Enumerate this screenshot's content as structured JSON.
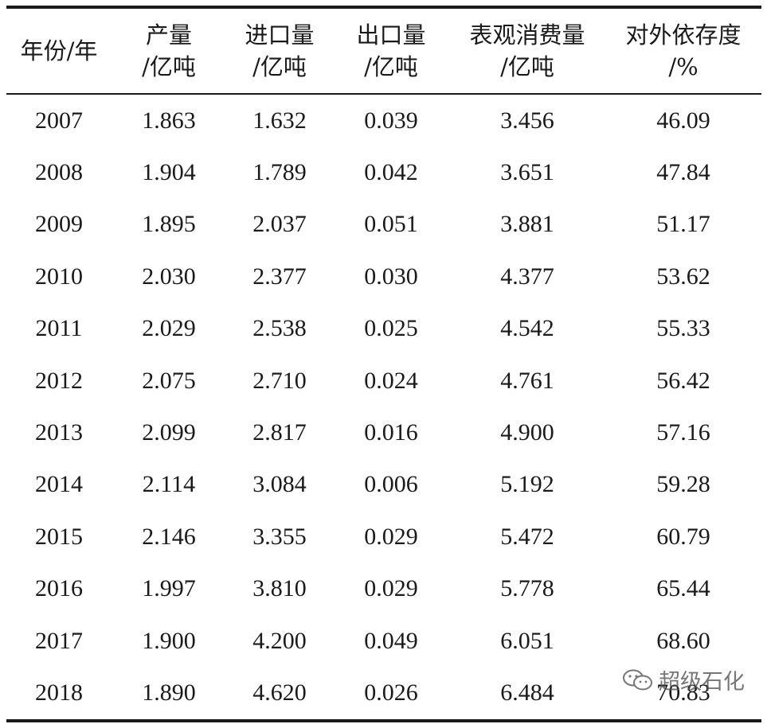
{
  "table": {
    "headers": [
      {
        "line1": "年份/年",
        "line2": ""
      },
      {
        "line1": "产量",
        "line2": "/亿吨"
      },
      {
        "line1": "进口量",
        "line2": "/亿吨"
      },
      {
        "line1": "出口量",
        "line2": "/亿吨"
      },
      {
        "line1": "表观消费量",
        "line2": "/亿吨"
      },
      {
        "line1": "对外依存度",
        "line2": "/%"
      }
    ],
    "rows": [
      [
        "2007",
        "1.863",
        "1.632",
        "0.039",
        "3.456",
        "46.09"
      ],
      [
        "2008",
        "1.904",
        "1.789",
        "0.042",
        "3.651",
        "47.84"
      ],
      [
        "2009",
        "1.895",
        "2.037",
        "0.051",
        "3.881",
        "51.17"
      ],
      [
        "2010",
        "2.030",
        "2.377",
        "0.030",
        "4.377",
        "53.62"
      ],
      [
        "2011",
        "2.029",
        "2.538",
        "0.025",
        "4.542",
        "55.33"
      ],
      [
        "2012",
        "2.075",
        "2.710",
        "0.024",
        "4.761",
        "56.42"
      ],
      [
        "2013",
        "2.099",
        "2.817",
        "0.016",
        "4.900",
        "57.16"
      ],
      [
        "2014",
        "2.114",
        "3.084",
        "0.006",
        "5.192",
        "59.28"
      ],
      [
        "2015",
        "2.146",
        "3.355",
        "0.029",
        "5.472",
        "60.79"
      ],
      [
        "2016",
        "1.997",
        "3.810",
        "0.029",
        "5.778",
        "65.44"
      ],
      [
        "2017",
        "1.900",
        "4.200",
        "0.049",
        "6.051",
        "68.60"
      ],
      [
        "2018",
        "1.890",
        "4.620",
        "0.026",
        "6.484",
        "70.83"
      ]
    ]
  },
  "watermark": {
    "icon": "wechat-icon",
    "text": "超级石化"
  }
}
